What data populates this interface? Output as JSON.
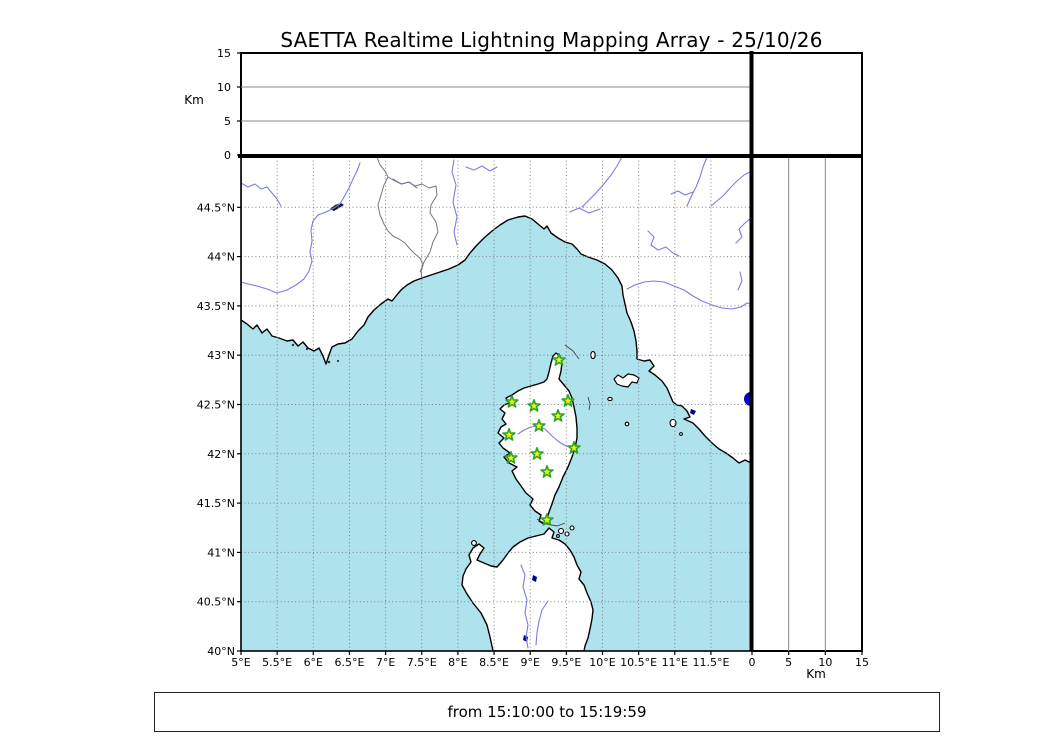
{
  "title": "SAETTA Realtime Lightning Mapping Array - 25/10/26",
  "time_range": {
    "label": "from 15:10:00 to 15:19:59",
    "from": "15:10:00",
    "to": "15:19:59"
  },
  "altitude_axis": {
    "label": "Km",
    "ticks": [
      0,
      5,
      10,
      15
    ],
    "max": 15,
    "gridlines": [
      5,
      10
    ]
  },
  "map_axes": {
    "lon_tick_labels": [
      "5°E",
      "5.5°E",
      "6°E",
      "6.5°E",
      "7°E",
      "7.5°E",
      "8°E",
      "8.5°E",
      "9°E",
      "9.5°E",
      "10°E",
      "10.5°E",
      "11°E",
      "11.5°E"
    ],
    "lat_tick_labels": [
      "40°N",
      "40.5°N",
      "41°N",
      "41.5°N",
      "42°N",
      "42.5°N",
      "43°N",
      "43.5°N",
      "44°N",
      "44.5°N"
    ],
    "lon_deg_start": 5.0,
    "lat_deg_start": 40.0,
    "deg_step": 0.5
  },
  "colors": {
    "sea": "#aee3ee",
    "land": "#ffffff",
    "coast": "#000000",
    "river": "#7b7be8",
    "country_border": "#777777",
    "grid": "#808080",
    "panel_grid": "#888888",
    "station_fill": "#ffef00",
    "station_stroke": "#26a626",
    "event": "#0000cd",
    "lake": "#00008b"
  },
  "stations": {
    "marker": "star",
    "count": 12,
    "points": [
      [
        318,
        203
      ],
      [
        271,
        245
      ],
      [
        293,
        249
      ],
      [
        327,
        244
      ],
      [
        317,
        259
      ],
      [
        298,
        269
      ],
      [
        268,
        278
      ],
      [
        333,
        291
      ],
      [
        270,
        301
      ],
      [
        296,
        297
      ],
      [
        306,
        315
      ],
      [
        306,
        363
      ]
    ]
  },
  "events": {
    "points": [
      [
        510,
        242
      ]
    ],
    "radius": 7
  }
}
